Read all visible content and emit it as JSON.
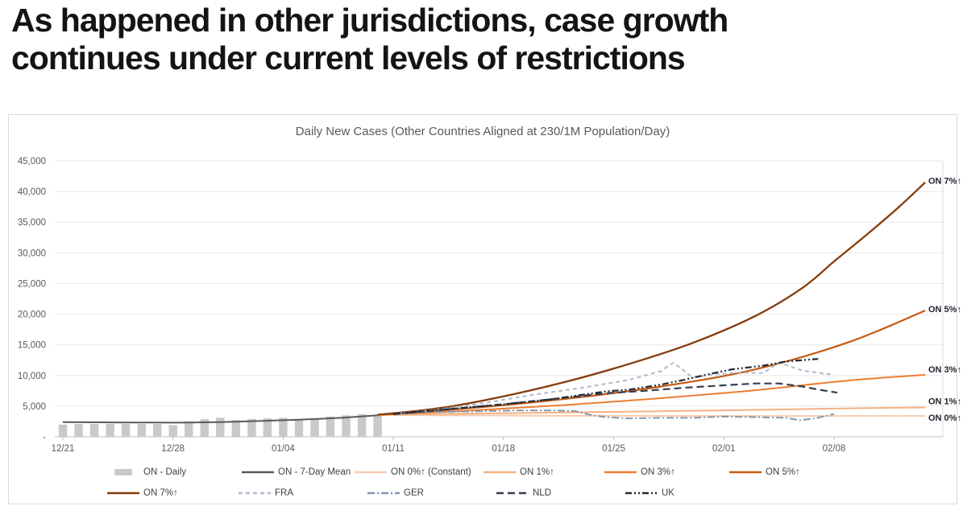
{
  "slide": {
    "title_line1": "As happened in other jurisdictions, case growth",
    "title_line2": "continues under current levels of restrictions"
  },
  "chart_data": {
    "type": "combo-bar-line",
    "title": "Daily New Cases (Other Countries Aligned at 230/1M Population/Day)",
    "ylim": [
      0,
      45000
    ],
    "grid": true,
    "legend_position": "bottom",
    "y_axis": {
      "tick_values": [
        0,
        5000,
        10000,
        15000,
        20000,
        25000,
        30000,
        35000,
        40000,
        45000
      ],
      "tick_labels": [
        "-",
        "5,000",
        "10,000",
        "15,000",
        "20,000",
        "25,000",
        "30,000",
        "35,000",
        "40,000",
        "45,000"
      ]
    },
    "x_axis": {
      "tick_day_indices": [
        0,
        7,
        14,
        21,
        28,
        35,
        42,
        49
      ],
      "tick_labels": [
        "12/21",
        "12/28",
        "01/04",
        "01/11",
        "01/18",
        "01/25",
        "02/01",
        "02/08"
      ],
      "total_days": 56
    },
    "bars": {
      "id": "daily",
      "label": "ON - Daily",
      "color": "#C9C9C9",
      "start_day": 0,
      "values": [
        2000,
        2100,
        2100,
        2100,
        2100,
        2100,
        2100,
        1900,
        2500,
        2900,
        3100,
        2700,
        2900,
        3000,
        3100,
        2900,
        3000,
        3300,
        3500,
        3700,
        3400
      ]
    },
    "series": [
      {
        "id": "mean",
        "label": "ON - 7-Day Mean",
        "color": "#595959",
        "style": "solid",
        "width": 2,
        "smooth": true,
        "points": [
          [
            0,
            2400
          ],
          [
            2,
            2360
          ],
          [
            4,
            2340
          ],
          [
            6,
            2320
          ],
          [
            8,
            2320
          ],
          [
            10,
            2400
          ],
          [
            12,
            2550
          ],
          [
            14,
            2700
          ],
          [
            16,
            2900
          ],
          [
            18,
            3150
          ],
          [
            20,
            3500
          ],
          [
            21.5,
            3700
          ]
        ]
      },
      {
        "id": "on0",
        "label": "ON 0%↑ (Constant)",
        "end_label": "ON 0%↑",
        "color": "#F8CBAD",
        "style": "solid",
        "width": 2,
        "smooth": true,
        "points": [
          [
            20,
            3550
          ],
          [
            30,
            3450
          ],
          [
            40,
            3400
          ],
          [
            54.8,
            3400
          ]
        ]
      },
      {
        "id": "on1",
        "label": "ON 1%↑",
        "end_label": "ON 1%↑",
        "color": "#F4B183",
        "style": "solid",
        "width": 2,
        "smooth": true,
        "points": [
          [
            20,
            3600
          ],
          [
            28,
            3850
          ],
          [
            36,
            4100
          ],
          [
            44,
            4400
          ],
          [
            50,
            4650
          ],
          [
            54.8,
            4800
          ]
        ]
      },
      {
        "id": "on3",
        "label": "ON 3%↑",
        "end_label": "ON 3%↑",
        "color": "#ED7D31",
        "style": "solid",
        "width": 2,
        "smooth": true,
        "points": [
          [
            20,
            3600
          ],
          [
            26,
            4300
          ],
          [
            32,
            5200
          ],
          [
            38,
            6300
          ],
          [
            44,
            7600
          ],
          [
            50,
            9200
          ],
          [
            54.8,
            10100
          ]
        ]
      },
      {
        "id": "on5",
        "label": "ON 5%↑",
        "end_label": "ON 5%↑",
        "color": "#C55A11",
        "style": "solid",
        "width": 2.2,
        "smooth": true,
        "points": [
          [
            20,
            3600
          ],
          [
            26,
            4700
          ],
          [
            32,
            6200
          ],
          [
            38,
            8200
          ],
          [
            44,
            11000
          ],
          [
            50,
            15500
          ],
          [
            54.8,
            20600
          ]
        ]
      },
      {
        "id": "on7",
        "label": "ON 7%↑",
        "end_label": "ON 7%↑",
        "color": "#843C0C",
        "style": "solid",
        "width": 2.3,
        "smooth": true,
        "points": [
          [
            20,
            3600
          ],
          [
            24,
            4700
          ],
          [
            28,
            6600
          ],
          [
            32,
            9000
          ],
          [
            36,
            11900
          ],
          [
            40,
            15300
          ],
          [
            44,
            19700
          ],
          [
            47,
            24300
          ],
          [
            49,
            28600
          ],
          [
            51,
            32800
          ],
          [
            53,
            37200
          ],
          [
            54.8,
            41500
          ]
        ]
      },
      {
        "id": "fra",
        "label": "FRA",
        "color": "#AEB9CA",
        "style": "dashed",
        "width": 2,
        "points": [
          [
            21,
            3700
          ],
          [
            24,
            4500
          ],
          [
            27,
            5600
          ],
          [
            30,
            6900
          ],
          [
            33,
            8000
          ],
          [
            36,
            9300
          ],
          [
            38,
            10700
          ],
          [
            38.8,
            12100
          ],
          [
            40,
            9700
          ],
          [
            41.5,
            10200
          ],
          [
            43,
            10500
          ],
          [
            44.5,
            10400
          ],
          [
            45.5,
            12100
          ],
          [
            47,
            10800
          ],
          [
            49,
            10100
          ]
        ]
      },
      {
        "id": "ger",
        "label": "GER",
        "color": "#8497B0",
        "style": "dashdot",
        "width": 2,
        "points": [
          [
            21,
            3700
          ],
          [
            23,
            4000
          ],
          [
            25,
            4100
          ],
          [
            27,
            4200
          ],
          [
            29,
            4300
          ],
          [
            31,
            4300
          ],
          [
            32.5,
            4200
          ],
          [
            33.5,
            3600
          ],
          [
            34.5,
            3200
          ],
          [
            36,
            3000
          ],
          [
            38,
            3100
          ],
          [
            40,
            3100
          ],
          [
            42,
            3300
          ],
          [
            44,
            3200
          ],
          [
            46,
            3100
          ],
          [
            46.8,
            2700
          ],
          [
            47.8,
            3000
          ],
          [
            49,
            3700
          ]
        ]
      },
      {
        "id": "nld",
        "label": "NLD",
        "color": "#333F50",
        "style": "longdash",
        "width": 2.2,
        "points": [
          [
            21,
            3700
          ],
          [
            24,
            4400
          ],
          [
            28,
            5300
          ],
          [
            32,
            6400
          ],
          [
            34.5,
            7100
          ],
          [
            37,
            7500
          ],
          [
            39.5,
            8000
          ],
          [
            42,
            8400
          ],
          [
            44,
            8700
          ],
          [
            45.5,
            8700
          ],
          [
            47,
            8200
          ],
          [
            48,
            7700
          ],
          [
            49.2,
            7200
          ]
        ]
      },
      {
        "id": "uk",
        "label": "UK",
        "color": "#222A35",
        "style": "dashdotdot",
        "width": 2.2,
        "points": [
          [
            21,
            3700
          ],
          [
            24,
            4400
          ],
          [
            28,
            5300
          ],
          [
            31,
            6100
          ],
          [
            34.5,
            7400
          ],
          [
            36,
            7700
          ],
          [
            38,
            8500
          ],
          [
            39.5,
            9300
          ],
          [
            41,
            10200
          ],
          [
            42.5,
            11000
          ],
          [
            44.5,
            11600
          ],
          [
            46,
            12300
          ],
          [
            47,
            12500
          ],
          [
            48,
            12700
          ]
        ]
      }
    ],
    "legend_rows": [
      [
        "daily",
        "mean",
        "on0",
        "on1",
        "on3",
        "on5"
      ],
      [
        "on7",
        "fra",
        "ger",
        "nld",
        "uk"
      ]
    ]
  }
}
